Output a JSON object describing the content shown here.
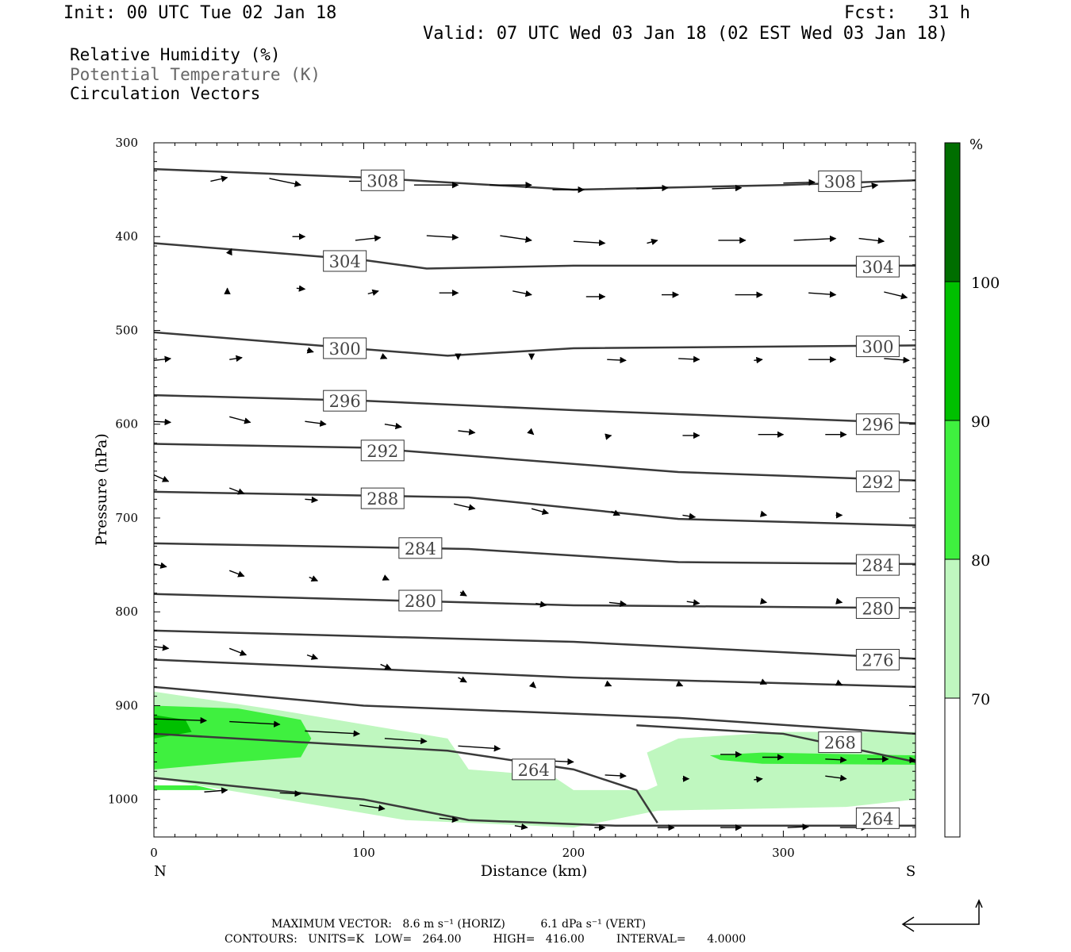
{
  "header": {
    "init": "Init: 00 UTC Tue 02 Jan 18",
    "fcst": "Fcst:   31 h",
    "valid": "Valid: 07 UTC Wed 03 Jan 18 (02 EST Wed 03 Jan 18)"
  },
  "titles": {
    "rh": "Relative Humidity (%)",
    "theta": "Potential Temperature (K)",
    "vectors": "Circulation Vectors"
  },
  "colors": {
    "rh70": "#bff7bf",
    "rh80": "#3ff03f",
    "rh90": "#00c000",
    "rh100": "#006e00",
    "contour": "#3a3a3a"
  },
  "chart_data": {
    "type": "cross-section",
    "xlabel": "Distance (km)",
    "ylabel": "Pressure (hPa)",
    "xlim": [
      0,
      363
    ],
    "ylim": [
      1040,
      300
    ],
    "xticks": [
      0,
      100,
      200,
      300
    ],
    "yticks": [
      300,
      400,
      500,
      600,
      700,
      800,
      900,
      1000
    ],
    "x_end_labels": {
      "left": "N",
      "right": "S"
    },
    "colorbar": {
      "unit": "%",
      "levels": [
        70,
        80,
        90,
        100
      ],
      "colors": [
        "#ffffff",
        "#bff7bf",
        "#3ff03f",
        "#00c000",
        "#006e00"
      ]
    },
    "theta_contours": [
      {
        "label": "308",
        "pts": [
          [
            0,
            328
          ],
          [
            100,
            337
          ],
          [
            200,
            350
          ],
          [
            300,
            345
          ],
          [
            363,
            340
          ]
        ],
        "labels_at": [
          [
            109,
            340
          ],
          [
            327,
            341
          ]
        ]
      },
      {
        "label": "304",
        "pts": [
          [
            0,
            407
          ],
          [
            100,
            425
          ],
          [
            130,
            434
          ],
          [
            200,
            431
          ],
          [
            363,
            431
          ]
        ],
        "labels_at": [
          [
            91,
            426
          ],
          [
            345,
            432
          ]
        ]
      },
      {
        "label": "300",
        "pts": [
          [
            0,
            502
          ],
          [
            100,
            520
          ],
          [
            140,
            527
          ],
          [
            200,
            519
          ],
          [
            363,
            516
          ]
        ],
        "labels_at": [
          [
            91,
            519
          ],
          [
            345,
            517
          ]
        ]
      },
      {
        "label": "296",
        "pts": [
          [
            0,
            569
          ],
          [
            100,
            575
          ],
          [
            200,
            585
          ],
          [
            363,
            599
          ]
        ],
        "labels_at": [
          [
            91,
            575
          ],
          [
            345,
            600
          ]
        ]
      },
      {
        "label": "292",
        "pts": [
          [
            0,
            621
          ],
          [
            100,
            625
          ],
          [
            250,
            651
          ],
          [
            363,
            660
          ]
        ],
        "labels_at": [
          [
            109,
            628
          ],
          [
            345,
            661
          ]
        ]
      },
      {
        "label": "288",
        "pts": [
          [
            0,
            672
          ],
          [
            150,
            678
          ],
          [
            250,
            701
          ],
          [
            363,
            708
          ]
        ],
        "labels_at": [
          [
            109,
            679
          ]
        ]
      },
      {
        "label": "284",
        "pts": [
          [
            0,
            727
          ],
          [
            150,
            733
          ],
          [
            250,
            747
          ],
          [
            363,
            749
          ]
        ],
        "labels_at": [
          [
            127,
            732
          ],
          [
            345,
            750
          ]
        ]
      },
      {
        "label": "280",
        "pts": [
          [
            0,
            781
          ],
          [
            200,
            793
          ],
          [
            363,
            796
          ]
        ],
        "labels_at": [
          [
            127,
            788
          ],
          [
            345,
            796
          ]
        ]
      },
      {
        "label": "276",
        "pts": [
          [
            0,
            820
          ],
          [
            200,
            832
          ],
          [
            363,
            850
          ]
        ],
        "labels_at": [
          [
            345,
            851
          ]
        ]
      },
      {
        "label": "",
        "pts": [
          [
            0,
            851
          ],
          [
            200,
            870
          ],
          [
            363,
            880
          ]
        ],
        "labels_at": []
      },
      {
        "label": "",
        "pts": [
          [
            0,
            880
          ],
          [
            100,
            900
          ],
          [
            250,
            913
          ],
          [
            363,
            930
          ]
        ],
        "labels_at": []
      },
      {
        "label": "268",
        "pts": [
          [
            0,
            930
          ],
          [
            140,
            948
          ],
          [
            200,
            968
          ],
          [
            230,
            990
          ],
          [
            240,
            1025
          ]
        ],
        "labels_at": []
      },
      {
        "label": "268",
        "pts": [
          [
            230,
            921
          ],
          [
            300,
            930
          ],
          [
            363,
            960
          ]
        ],
        "labels_at": [
          [
            327,
            939
          ]
        ]
      },
      {
        "label": "264",
        "pts": [
          [
            0,
            977
          ],
          [
            100,
            1000
          ],
          [
            150,
            1022
          ],
          [
            220,
            1028
          ],
          [
            363,
            1028
          ]
        ],
        "labels_at": [
          [
            181,
            968
          ],
          [
            345,
            1020
          ]
        ]
      }
    ],
    "rh_fill_contours": [
      {
        "level": 70,
        "pts": [
          [
            0,
            885
          ],
          [
            60,
            905
          ],
          [
            140,
            935
          ],
          [
            150,
            968
          ],
          [
            190,
            975
          ],
          [
            200,
            990
          ],
          [
            235,
            990
          ],
          [
            240,
            985
          ],
          [
            235,
            950
          ],
          [
            250,
            935
          ],
          [
            300,
            928
          ],
          [
            363,
            928
          ],
          [
            363,
            1000
          ],
          [
            330,
            1008
          ],
          [
            240,
            1012
          ],
          [
            200,
            1030
          ],
          [
            120,
            1022
          ],
          [
            0,
            977
          ]
        ]
      },
      {
        "level": 80,
        "pts": [
          [
            0,
            900
          ],
          [
            40,
            903
          ],
          [
            70,
            915
          ],
          [
            75,
            935
          ],
          [
            70,
            955
          ],
          [
            40,
            960
          ],
          [
            0,
            968
          ]
        ]
      },
      {
        "level": 80,
        "pts": [
          [
            0,
            985
          ],
          [
            20,
            985
          ],
          [
            30,
            990
          ],
          [
            0,
            990
          ]
        ]
      },
      {
        "level": 80,
        "pts": [
          [
            265,
            953
          ],
          [
            290,
            950
          ],
          [
            363,
            953
          ],
          [
            363,
            963
          ],
          [
            290,
            962
          ],
          [
            270,
            958
          ]
        ]
      },
      {
        "level": 90,
        "pts": [
          [
            0,
            910
          ],
          [
            15,
            915
          ],
          [
            18,
            928
          ],
          [
            0,
            935
          ]
        ]
      }
    ],
    "vectors": [
      [
        27,
        341,
        35,
        337
      ],
      [
        55,
        338,
        70,
        345
      ],
      [
        93,
        341,
        108,
        341
      ],
      [
        124,
        345,
        145,
        345
      ],
      [
        160,
        345,
        180,
        345
      ],
      [
        190,
        350,
        205,
        350
      ],
      [
        230,
        349,
        245,
        348
      ],
      [
        266,
        349,
        280,
        348
      ],
      [
        300,
        343,
        315,
        342
      ],
      [
        336,
        348,
        345,
        345
      ],
      [
        36,
        418,
        37,
        413
      ],
      [
        66,
        400,
        72,
        400
      ],
      [
        96,
        404,
        108,
        401
      ],
      [
        130,
        399,
        145,
        401
      ],
      [
        165,
        399,
        180,
        404
      ],
      [
        200,
        405,
        215,
        407
      ],
      [
        235,
        407,
        240,
        404
      ],
      [
        269,
        404,
        282,
        404
      ],
      [
        305,
        404,
        325,
        402
      ],
      [
        336,
        402,
        348,
        405
      ],
      [
        35,
        461,
        35,
        455
      ],
      [
        68,
        455,
        72,
        456
      ],
      [
        102,
        461,
        107,
        458
      ],
      [
        136,
        460,
        145,
        460
      ],
      [
        171,
        458,
        180,
        462
      ],
      [
        206,
        464,
        215,
        464
      ],
      [
        242,
        462,
        250,
        462
      ],
      [
        277,
        462,
        290,
        462
      ],
      [
        312,
        460,
        325,
        462
      ],
      [
        348,
        459,
        359,
        465
      ],
      [
        0,
        532,
        8,
        530
      ],
      [
        36,
        531,
        42,
        529
      ],
      [
        73,
        521,
        76,
        523
      ],
      [
        110,
        529,
        111,
        530
      ],
      [
        145,
        530,
        145,
        531
      ],
      [
        180,
        530,
        180,
        531
      ],
      [
        216,
        531,
        225,
        532
      ],
      [
        250,
        530,
        260,
        531
      ],
      [
        286,
        532,
        290,
        531
      ],
      [
        312,
        531,
        325,
        531
      ],
      [
        348,
        530,
        360,
        532
      ],
      [
        0,
        597,
        8,
        598
      ],
      [
        36,
        592,
        46,
        598
      ],
      [
        72,
        597,
        82,
        600
      ],
      [
        110,
        600,
        118,
        603
      ],
      [
        145,
        607,
        153,
        609
      ],
      [
        180,
        609,
        181,
        611
      ],
      [
        216,
        613,
        218,
        612
      ],
      [
        252,
        612,
        260,
        612
      ],
      [
        288,
        611,
        300,
        611
      ],
      [
        320,
        611,
        330,
        611
      ],
      [
        0,
        654,
        7,
        661
      ],
      [
        36,
        668,
        43,
        674
      ],
      [
        72,
        680,
        78,
        681
      ],
      [
        108,
        679,
        113,
        679
      ],
      [
        143,
        685,
        153,
        690
      ],
      [
        180,
        690,
        188,
        695
      ],
      [
        218,
        693,
        222,
        697
      ],
      [
        252,
        697,
        258,
        699
      ],
      [
        290,
        696,
        292,
        697
      ],
      [
        325,
        697,
        328,
        697
      ],
      [
        0,
        749,
        6,
        752
      ],
      [
        36,
        756,
        43,
        762
      ],
      [
        74,
        763,
        78,
        767
      ],
      [
        110,
        764,
        112,
        766
      ],
      [
        146,
        779,
        149,
        783
      ],
      [
        182,
        791,
        187,
        793
      ],
      [
        217,
        790,
        225,
        792
      ],
      [
        254,
        789,
        260,
        791
      ],
      [
        290,
        789,
        292,
        790
      ],
      [
        326,
        789,
        328,
        790
      ],
      [
        0,
        837,
        7,
        839
      ],
      [
        36,
        839,
        44,
        846
      ],
      [
        73,
        846,
        78,
        850
      ],
      [
        108,
        856,
        113,
        861
      ],
      [
        145,
        870,
        149,
        875
      ],
      [
        180,
        877,
        182,
        881
      ],
      [
        216,
        877,
        218,
        879
      ],
      [
        250,
        877,
        252,
        879
      ],
      [
        290,
        875,
        292,
        877
      ],
      [
        326,
        876,
        328,
        878
      ],
      [
        0,
        914,
        25,
        916
      ],
      [
        36,
        917,
        60,
        920
      ],
      [
        72,
        927,
        98,
        930
      ],
      [
        110,
        935,
        130,
        938
      ],
      [
        145,
        943,
        165,
        946
      ],
      [
        180,
        958,
        200,
        960
      ],
      [
        215,
        974,
        225,
        975
      ],
      [
        252,
        978,
        255,
        978
      ],
      [
        286,
        979,
        290,
        978
      ],
      [
        320,
        975,
        330,
        978
      ],
      [
        24,
        992,
        35,
        990
      ],
      [
        60,
        993,
        70,
        994
      ],
      [
        98,
        1006,
        110,
        1010
      ],
      [
        136,
        1020,
        145,
        1022
      ],
      [
        172,
        1028,
        178,
        1030
      ],
      [
        210,
        1030,
        215,
        1030
      ],
      [
        240,
        1030,
        248,
        1030
      ],
      [
        270,
        1030,
        280,
        1030
      ],
      [
        302,
        1030,
        312,
        1029
      ],
      [
        327,
        1030,
        340,
        1030
      ],
      [
        270,
        952,
        280,
        952
      ],
      [
        290,
        955,
        300,
        955
      ],
      [
        320,
        957,
        330,
        958
      ],
      [
        340,
        957,
        350,
        957
      ],
      [
        360,
        958,
        363,
        958
      ]
    ],
    "max_vector": "MAXIMUM VECTOR:   8.6 m s⁻¹ (HORIZ)          6.1 dPa s⁻¹ (VERT)",
    "contours_line": "CONTOURS:   UNITS=K   LOW=   264.00         HIGH=   416.00         INTERVAL=      4.0000"
  }
}
